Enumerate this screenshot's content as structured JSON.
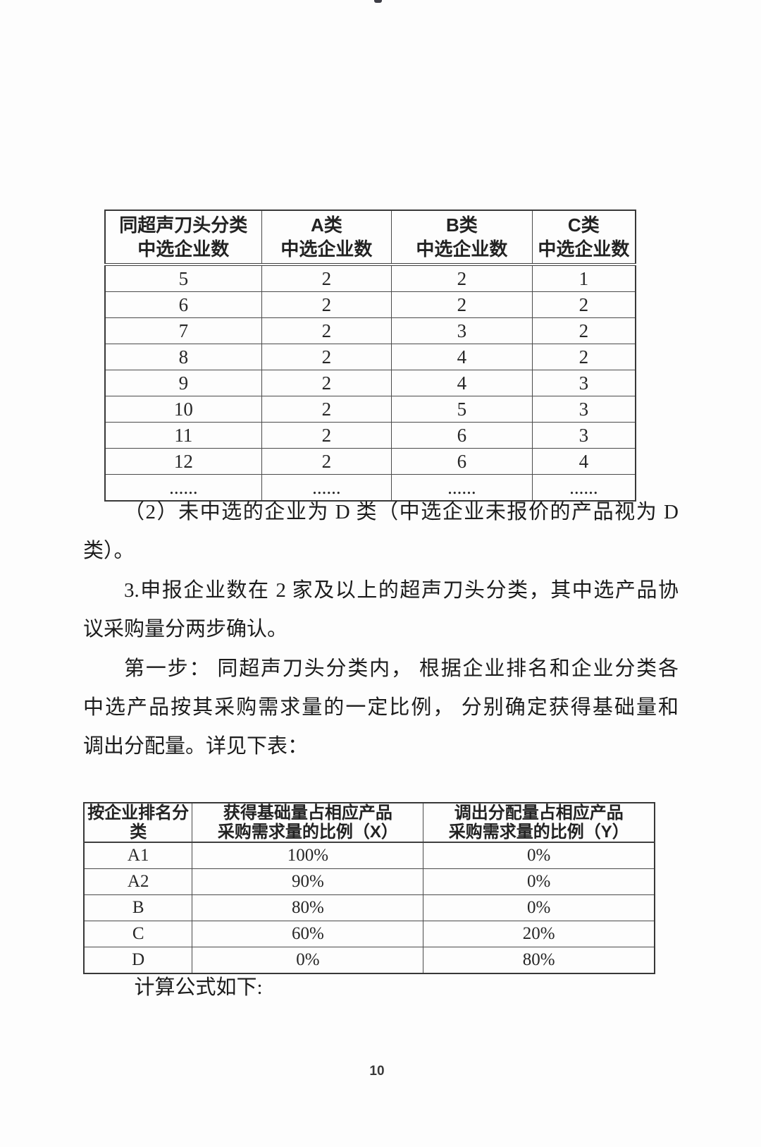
{
  "table1": {
    "headers": [
      {
        "line1": "同超声刀头分类",
        "line2": "中选企业数"
      },
      {
        "line1": "A类",
        "line2": "中选企业数"
      },
      {
        "line1": "B类",
        "line2": "中选企业数"
      },
      {
        "line1": "C类",
        "line2": "中选企业数"
      }
    ],
    "rows": [
      [
        "5",
        "2",
        "2",
        "1"
      ],
      [
        "6",
        "2",
        "2",
        "2"
      ],
      [
        "7",
        "2",
        "3",
        "2"
      ],
      [
        "8",
        "2",
        "4",
        "2"
      ],
      [
        "9",
        "2",
        "4",
        "3"
      ],
      [
        "10",
        "2",
        "5",
        "3"
      ],
      [
        "11",
        "2",
        "6",
        "3"
      ],
      [
        "12",
        "2",
        "6",
        "4"
      ],
      [
        "......",
        "......",
        "......",
        "......"
      ]
    ]
  },
  "body": {
    "lines": [
      {
        "text": "（2）未中选的企业为 D 类（中选企业未报价的产品视为 D",
        "fill": true,
        "indent": true
      },
      {
        "text": "类）。",
        "fill": false,
        "indent": false
      },
      {
        "text": "3.申报企业数在 2 家及以上的超声刀头分类，其中选产品协",
        "fill": true,
        "indent": true
      },
      {
        "text": "议采购量分两步确认。",
        "fill": false,
        "indent": false
      },
      {
        "text": "第一步： 同超声刀头分类内， 根据企业排名和企业分类各",
        "fill": true,
        "indent": true
      },
      {
        "text": "中选产品按其采购需求量的一定比例， 分别确定获得基础量和",
        "fill": true,
        "indent": false
      },
      {
        "text": "调出分配量。详见下表：",
        "fill": false,
        "indent": false
      }
    ]
  },
  "table2": {
    "headers": [
      {
        "line1": "按企业排名分类",
        "line2": ""
      },
      {
        "line1": "获得基础量占相应产品",
        "line2": "采购需求量的比例（X）"
      },
      {
        "line1": "调出分配量占相应产品",
        "line2": "采购需求量的比例（Y）"
      }
    ],
    "rows": [
      [
        "A1",
        "100%",
        "0%"
      ],
      [
        "A2",
        "90%",
        "0%"
      ],
      [
        "B",
        "80%",
        "0%"
      ],
      [
        "C",
        "60%",
        "20%"
      ],
      [
        "D",
        "0%",
        "80%"
      ]
    ]
  },
  "closing": {
    "text": "计算公式如下:"
  },
  "page": {
    "number": "10"
  }
}
